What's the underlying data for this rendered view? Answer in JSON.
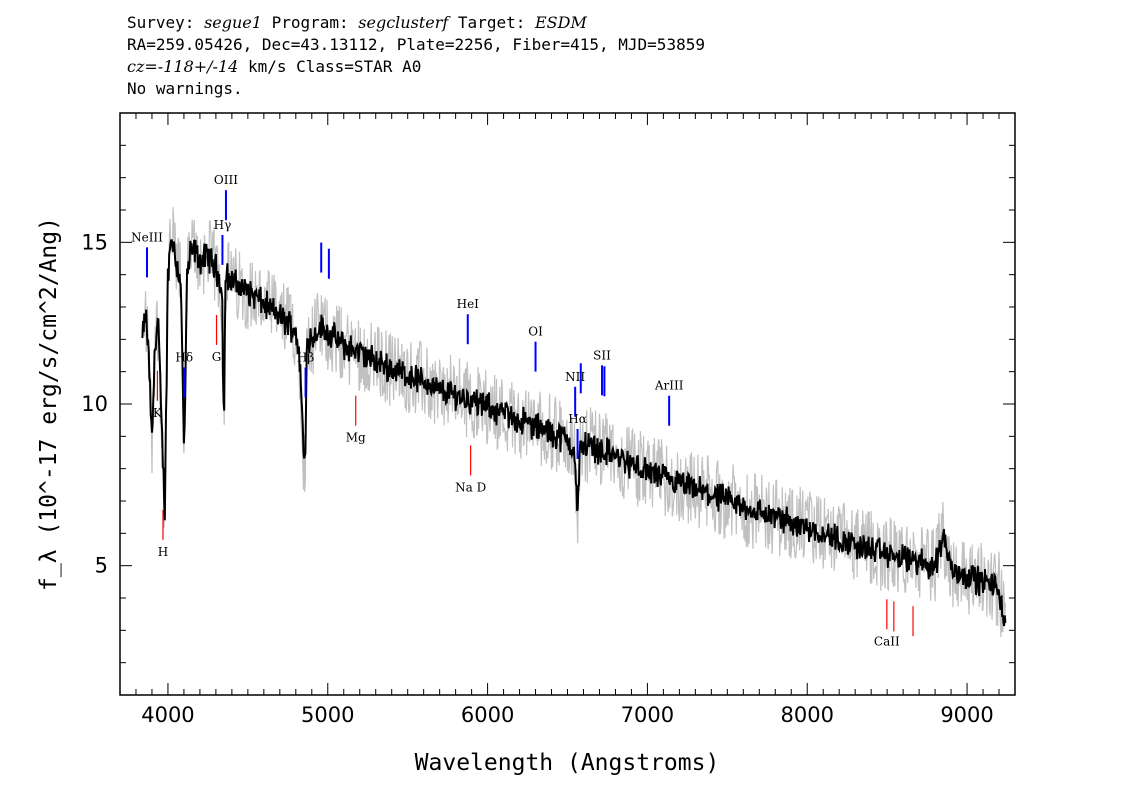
{
  "header": {
    "survey_label": "Survey:",
    "survey": "segue1",
    "program_label": "Program:",
    "program": "segclusterf",
    "target_label": "Target:",
    "target": "ESDM",
    "line2": "RA=259.05426, Dec=43.13112, Plate=2256, Fiber=415, MJD=53859",
    "cz_label": "cz=",
    "cz": "-118+/-14",
    "cz_rest": " km/s Class=STAR A0",
    "warnings": "No warnings."
  },
  "chart_data": {
    "type": "line",
    "title": "",
    "xlabel": "Wavelength (Angstroms)",
    "ylabel": "f_λ (10^-17 erg/s/cm^2/Ang)",
    "xlim": [
      3700,
      9300
    ],
    "ylim": [
      1,
      19
    ],
    "xticks": [
      4000,
      5000,
      6000,
      7000,
      8000,
      9000
    ],
    "yticks": [
      5,
      10,
      15
    ],
    "series": [
      {
        "color": "#000000",
        "x": [
          3840,
          3860,
          3880,
          3900,
          3920,
          3940,
          3960,
          3970,
          3980,
          4000,
          4020,
          4040,
          4060,
          4080,
          4100,
          4102,
          4120,
          4140,
          4160,
          4200,
          4250,
          4300,
          4330,
          4340,
          4350,
          4360,
          4400,
          4450,
          4500,
          4550,
          4600,
          4650,
          4700,
          4750,
          4800,
          4830,
          4850,
          4861,
          4870,
          4900,
          4950,
          5000,
          5100,
          5200,
          5300,
          5400,
          5500,
          5600,
          5700,
          5800,
          5900,
          6000,
          6100,
          6200,
          6300,
          6400,
          6500,
          6540,
          6563,
          6580,
          6600,
          6650,
          6700,
          6800,
          6900,
          7000,
          7200,
          7400,
          7600,
          7800,
          8000,
          8200,
          8400,
          8600,
          8800,
          8850,
          8900,
          9000,
          9100,
          9200,
          9240
        ],
        "y": [
          12.0,
          12.8,
          11.5,
          8.8,
          12.0,
          12.6,
          9.2,
          8.0,
          6.6,
          14.0,
          15.2,
          14.8,
          14.2,
          13.8,
          8.8,
          8.5,
          14.0,
          14.6,
          14.8,
          14.4,
          14.6,
          14.2,
          13.8,
          13.0,
          9.0,
          14.0,
          13.8,
          13.6,
          13.5,
          13.3,
          13.1,
          12.9,
          12.7,
          12.5,
          12.3,
          11.0,
          8.2,
          8.5,
          12.2,
          12.0,
          12.4,
          12.2,
          11.8,
          11.6,
          11.3,
          11.1,
          10.9,
          10.7,
          10.4,
          10.3,
          10.1,
          9.9,
          9.7,
          9.5,
          9.3,
          9.1,
          8.9,
          8.6,
          6.6,
          8.6,
          8.8,
          8.7,
          8.6,
          8.4,
          8.1,
          7.9,
          7.5,
          7.2,
          6.8,
          6.5,
          6.2,
          5.8,
          5.5,
          5.2,
          5.0,
          6.0,
          4.9,
          4.7,
          4.5,
          4.3,
          3.0
        ]
      }
    ],
    "annotations": [
      {
        "label": "NeIII",
        "x": 3869,
        "color": "#0000ff"
      },
      {
        "label": "Hδ",
        "x": 4102,
        "color": "#0000ff"
      },
      {
        "label": "Hγ",
        "x": 4341,
        "color": "#0000ff"
      },
      {
        "label": "OIII",
        "x": 4363,
        "color": "#0000ff"
      },
      {
        "label": "Hβ",
        "x": 4861,
        "color": "#0000ff"
      },
      {
        "label": "OIII",
        "x": 4959,
        "color": "#0000ff"
      },
      {
        "label": "OIII",
        "x": 5007,
        "color": "#0000ff"
      },
      {
        "label": "HeI",
        "x": 5876,
        "color": "#0000ff"
      },
      {
        "label": "OI",
        "x": 6300,
        "color": "#0000ff"
      },
      {
        "label": "NII",
        "x": 6548,
        "color": "#0000ff"
      },
      {
        "label": "Hα",
        "x": 6563,
        "color": "#0000ff"
      },
      {
        "label": "NII",
        "x": 6583,
        "color": "#0000ff"
      },
      {
        "label": "SII",
        "x": 6716,
        "color": "#0000ff"
      },
      {
        "label": "SII",
        "x": 6731,
        "color": "#0000ff"
      },
      {
        "label": "ArIII",
        "x": 7136,
        "color": "#0000ff"
      },
      {
        "label": "K",
        "x": 3934,
        "color": "#ff0000"
      },
      {
        "label": "H",
        "x": 3969,
        "color": "#ff0000"
      },
      {
        "label": "G",
        "x": 4304,
        "color": "#ff0000"
      },
      {
        "label": "Mg",
        "x": 5175,
        "color": "#ff0000"
      },
      {
        "label": "Na D",
        "x": 5894,
        "color": "#ff0000"
      },
      {
        "label": "CaII",
        "x": 8498,
        "color": "#ff0000"
      },
      {
        "label": "CaII",
        "x": 8542,
        "color": "#ff0000"
      },
      {
        "label": "CaII",
        "x": 8662,
        "color": "#ff0000"
      }
    ],
    "colors": {
      "emission": "#0000ff",
      "absorption": "#ff0000",
      "flux": "#000000",
      "error_band": "#c0c0c0"
    }
  }
}
